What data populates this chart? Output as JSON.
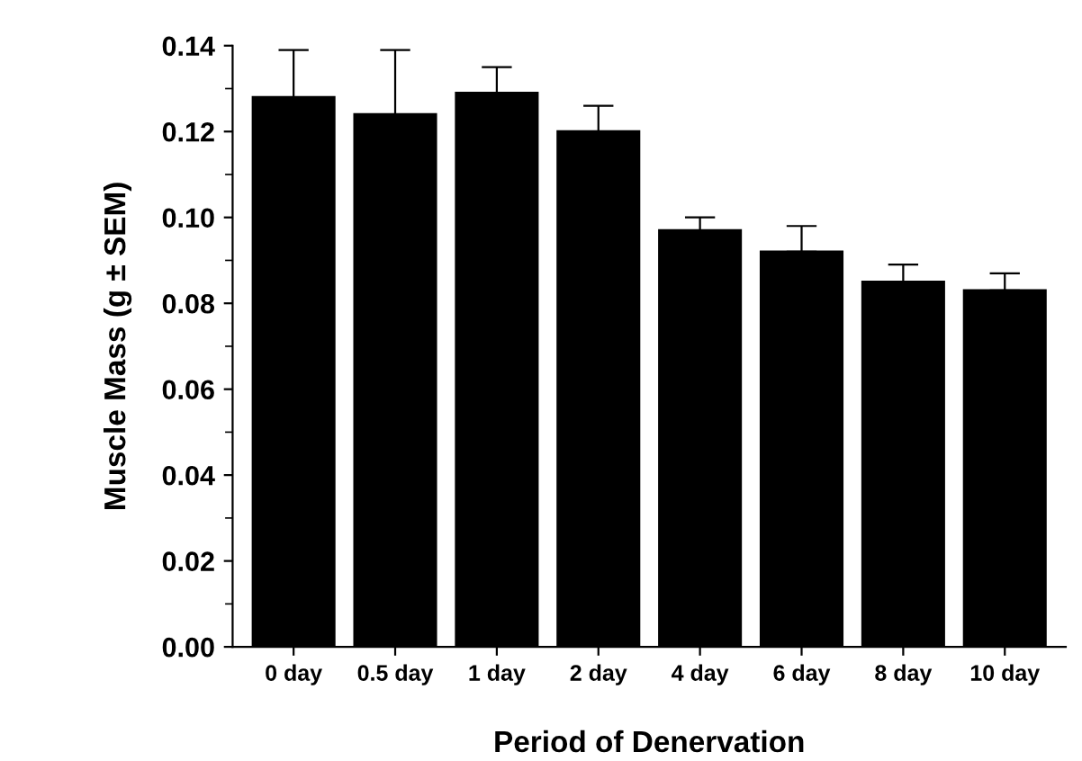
{
  "chart_data": {
    "type": "bar",
    "xlabel": "Period of Denervation",
    "ylabel": "Muscle Mass (g ± SEM)",
    "categories": [
      "0 day",
      "0.5 day",
      "1 day",
      "2 day",
      "4 day",
      "6 day",
      "8 day",
      "10 day"
    ],
    "values": [
      0.128,
      0.124,
      0.129,
      0.12,
      0.097,
      0.092,
      0.085,
      0.083
    ],
    "errors": [
      [
        0.128,
        0.139
      ],
      [
        0.124,
        0.139
      ],
      [
        0.129,
        0.135
      ],
      [
        0.12,
        0.126
      ],
      [
        0.097,
        0.1
      ],
      [
        0.092,
        0.098
      ],
      [
        0.085,
        0.089
      ],
      [
        0.083,
        0.087
      ]
    ],
    "color": "#000000",
    "ylim": [
      0,
      0.14
    ],
    "yticks": [
      {
        "value": 0,
        "label": "0.00"
      },
      {
        "value": 0.02,
        "label": "0.02"
      },
      {
        "value": 0.04,
        "label": "0.04"
      },
      {
        "value": 0.06,
        "label": "0.06"
      },
      {
        "value": 0.08,
        "label": "0.08"
      },
      {
        "value": 0.1,
        "label": "0.10"
      },
      {
        "value": 0.12,
        "label": "0.12"
      },
      {
        "value": 0.14,
        "label": "0.14"
      }
    ],
    "grid": false,
    "legend": false
  }
}
